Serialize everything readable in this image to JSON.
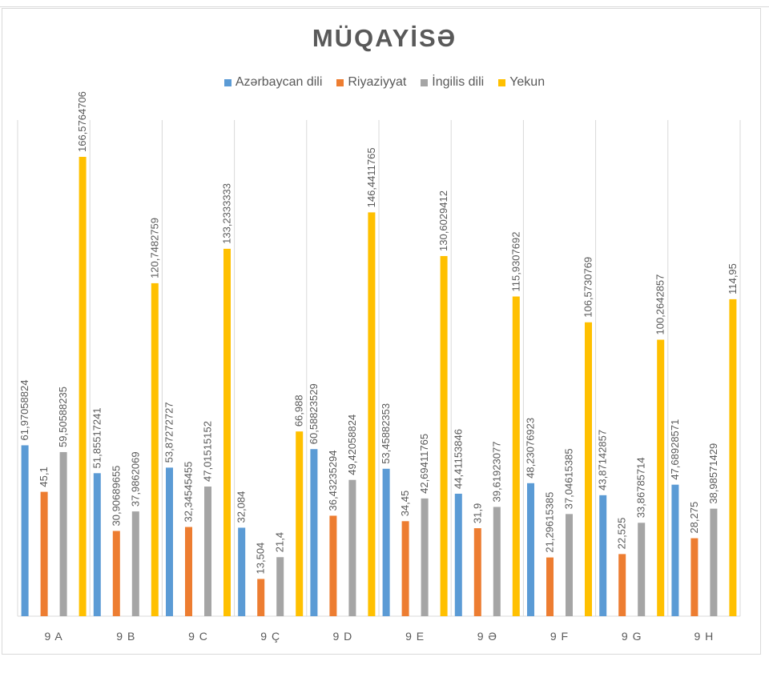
{
  "chart_data": {
    "type": "bar",
    "title": "MÜQAYİSƏ",
    "categories": [
      "9 A",
      "9 B",
      "9 C",
      "9 Ç",
      "9 D",
      "9 E",
      "9 Ə",
      "9 F",
      "9 G",
      "9 H"
    ],
    "series": [
      {
        "name": "Azərbaycan dili",
        "color": "#5b9bd5",
        "values": [
          61.97058824,
          51.85517241,
          53.87272727,
          32.084,
          60.58823529,
          53.45882353,
          44.41153846,
          48.23076923,
          43.87142857,
          47.68928571
        ],
        "labels": [
          "61,97058824",
          "51,85517241",
          "53,87272727",
          "32,084",
          "60,58823529",
          "53,45882353",
          "44,41153846",
          "48,23076923",
          "43,87142857",
          "47,68928571"
        ]
      },
      {
        "name": "Riyaziyyat",
        "color": "#ed7d31",
        "values": [
          45.1,
          30.90689655,
          32.34545455,
          13.504,
          36.43235294,
          34.45,
          31.9,
          21.29615385,
          22.525,
          28.275
        ],
        "labels": [
          "45,1",
          "30,90689655",
          "32,34545455",
          "13,504",
          "36,43235294",
          "34,45",
          "31,9",
          "21,29615385",
          "22,525",
          "28,275"
        ]
      },
      {
        "name": "İngilis dili",
        "color": "#a5a5a5",
        "values": [
          59.50588235,
          37.9862069,
          47.01515152,
          21.4,
          49.42058824,
          42.69411765,
          39.61923077,
          37.04615385,
          33.86785714,
          38.98571429
        ],
        "labels": [
          "59,50588235",
          "37,9862069",
          "47,01515152",
          "21,4",
          "49,42058824",
          "42,69411765",
          "39,61923077",
          "37,04615385",
          "33,86785714",
          "38,98571429"
        ]
      },
      {
        "name": "Yekun",
        "color": "#ffc000",
        "values": [
          166.5764706,
          120.7482759,
          133.2333333,
          66.988,
          146.4411765,
          130.6029412,
          115.9307692,
          106.5730769,
          100.2642857,
          114.95
        ],
        "labels": [
          "166,5764706",
          "120,7482759",
          "133,2333333",
          "66,988",
          "146,4411765",
          "130,6029412",
          "115,9307692",
          "106,5730769",
          "100,2642857",
          "114,95"
        ]
      }
    ],
    "ylim": [
      0,
      180
    ],
    "grid": "vertical category separators",
    "legend_position": "top"
  }
}
